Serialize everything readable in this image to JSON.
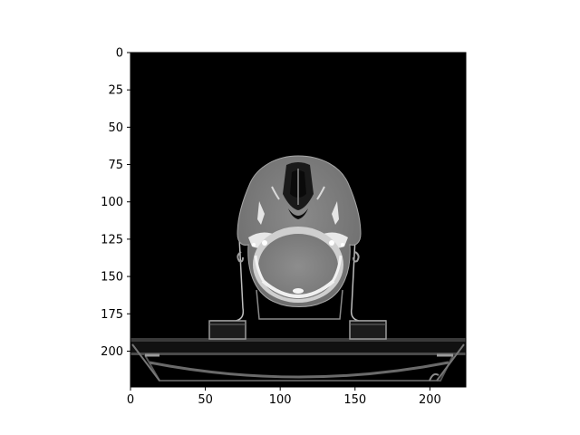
{
  "figure": {
    "image_kind": "axial CT scan slice of head (grayscale)",
    "background": "#ffffff",
    "image_background": "#000000",
    "colormap": "gray"
  },
  "axes": {
    "x": {
      "range": [
        0,
        224
      ],
      "ticks": [
        0,
        50,
        100,
        150,
        200
      ]
    },
    "y": {
      "range": [
        0,
        224
      ],
      "inverted": true,
      "ticks": [
        0,
        25,
        50,
        75,
        100,
        125,
        150,
        175,
        200
      ]
    }
  }
}
